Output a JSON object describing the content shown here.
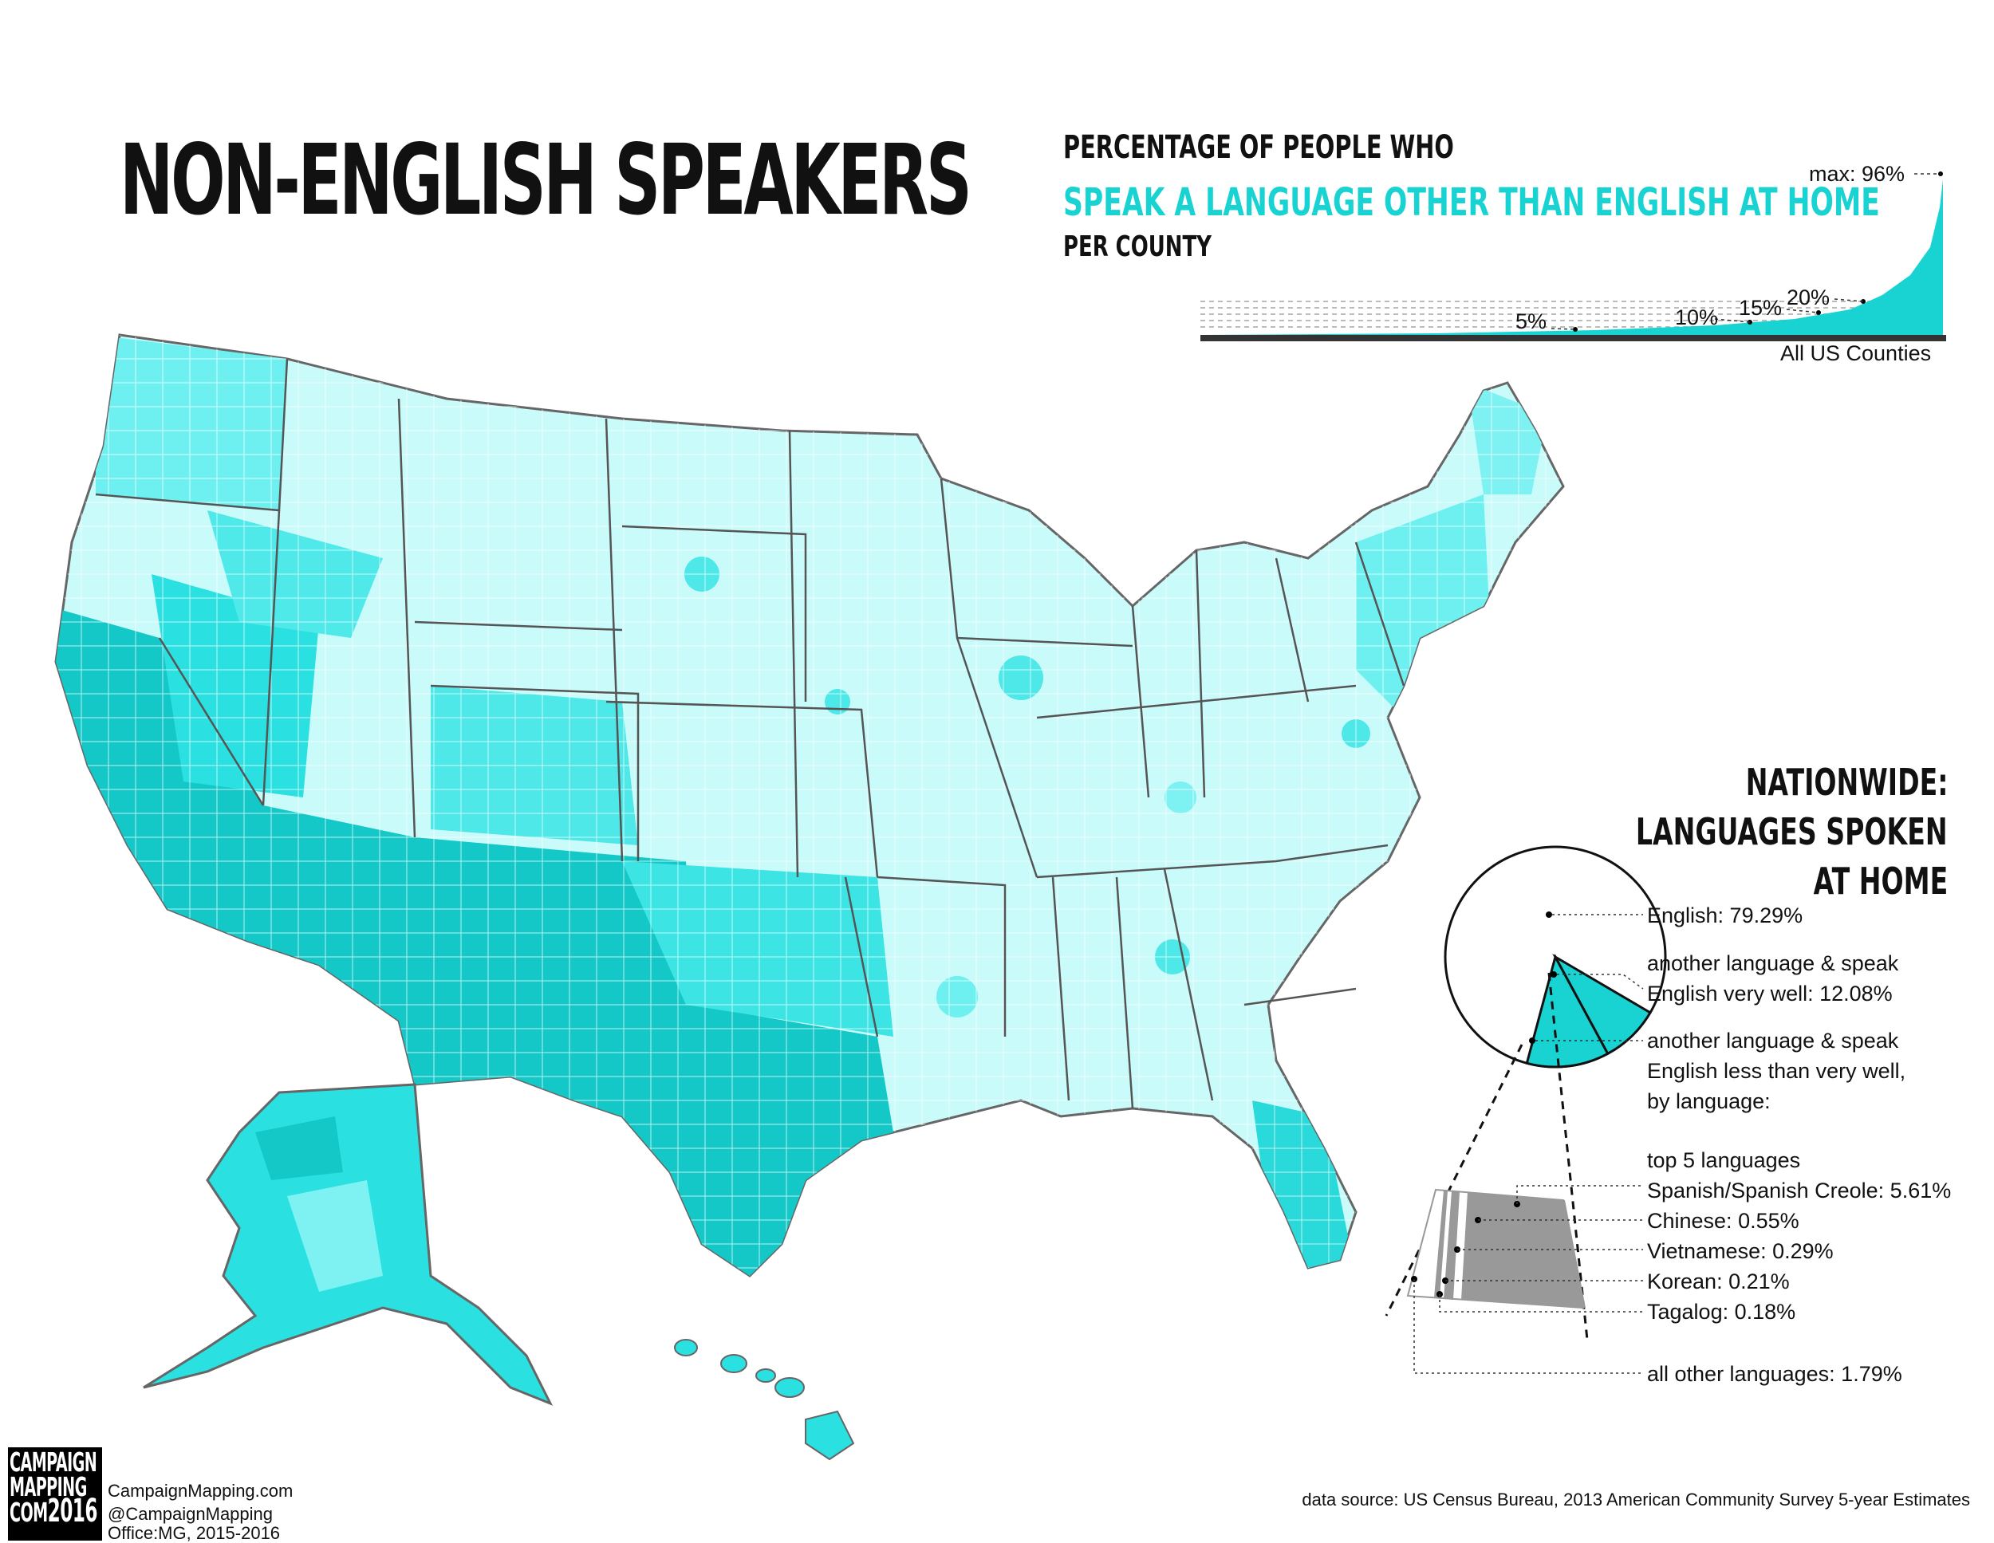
{
  "title": "NON-ENGLISH SPEAKERS",
  "subtitle": {
    "line1": "PERCENTAGE OF PEOPLE WHO",
    "line2": "SPEAK A LANGUAGE OTHER THAN ENGLISH AT HOME",
    "line3": "PER COUNTY"
  },
  "distribution": {
    "max_label": "max: 96%",
    "markers": [
      "5%",
      "10%",
      "15%",
      "20%"
    ],
    "axis_label": "All US Counties"
  },
  "nationwide": {
    "heading_line1": "NATIONWIDE:",
    "heading_line2": "LANGUAGES SPOKEN",
    "heading_line3": "AT HOME",
    "english": "English: 79.29%",
    "very_well_l1": "another language & speak",
    "very_well_l2": "English very well: 12.08%",
    "less_l1": "another language & speak",
    "less_l2": "English less than very well,",
    "less_l3": "by language:",
    "top5": "top 5 languages",
    "spanish": "Spanish/Spanish Creole: 5.61%",
    "chinese": "Chinese: 0.55%",
    "vietnamese": "Vietnamese: 0.29%",
    "korean": "Korean: 0.21%",
    "tagalog": "Tagalog: 0.18%",
    "other": "all other languages: 1.79%"
  },
  "chart_data": {
    "type": "pie",
    "title": "NATIONWIDE: LANGUAGES SPOKEN AT HOME",
    "slices": [
      {
        "label": "English",
        "value": 79.29
      },
      {
        "label": "another language & speak English very well",
        "value": 12.08
      },
      {
        "label": "another language & speak English less than very well",
        "value": 8.63
      }
    ],
    "breakdown": [
      {
        "label": "Spanish/Spanish Creole",
        "value": 5.61
      },
      {
        "label": "Chinese",
        "value": 0.55
      },
      {
        "label": "Vietnamese",
        "value": 0.29
      },
      {
        "label": "Korean",
        "value": 0.21
      },
      {
        "label": "Tagalog",
        "value": 0.18
      },
      {
        "label": "all other languages",
        "value": 1.79
      }
    ]
  },
  "colors": {
    "accent": "#19d3d3",
    "light": "#c9fbfb",
    "mid": "#7ef2f2",
    "dark": "#14c8c8",
    "gray": "#999999"
  },
  "logo": {
    "l1": "CAMPAIGN",
    "l2": "MAPPING",
    "l3": "COM",
    "year": "2016"
  },
  "credits": {
    "site": "CampaignMapping.com",
    "handle": "@CampaignMapping",
    "office": "Office:MG, 2015-2016"
  },
  "source": "data source: US Census Bureau, 2013 American Community Survey 5-year Estimates"
}
